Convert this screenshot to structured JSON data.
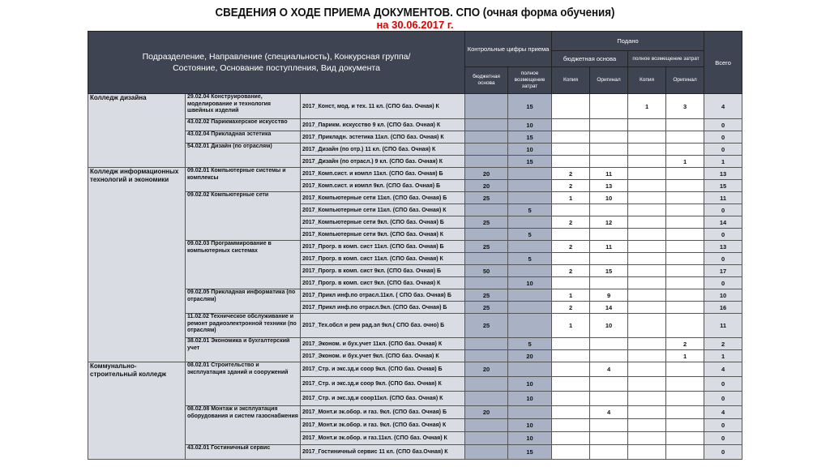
{
  "title": "СВЕДЕНИЯ О ХОДЕ ПРИЕМА ДОКУМЕНТОВ. СПО (очная форма обучения)",
  "subtitle": "на 30.06.2017 г.",
  "header": {
    "main": "Подразделение, Направление (специальность), Конкурсная группа/Состояние, Основание поступления, Вид документа",
    "control": "Контрольные цифры приема",
    "control_budget": "бюджетная основа",
    "control_full": "полное возмещение затрат",
    "submitted": "Подано",
    "sub_budget": "бюджетная основа",
    "sub_full": "полное возмещение затрат",
    "copy": "Копия",
    "original": "Оригинал",
    "copy2": "Копия",
    "original2": "Оригинал",
    "total": "Всего"
  },
  "colors": {
    "header_bg": "#3f4452",
    "label_bg": "#d9dce3",
    "control_bg": "#a9b2c4",
    "date_red": "#e00000"
  },
  "rows": [
    {
      "division": "Колледж дизайна",
      "div_span": 5,
      "direction": "29.02.04 Конструирование, моделирование и технология швейных изделий",
      "dir_span": 1,
      "group": "2017_Конст, мод. и тех. 11 кл. (СПО баз. Очная) К",
      "kb": "",
      "kp": "15",
      "bc": "",
      "bo": "",
      "fc": "1",
      "fo": "3",
      "total": "4"
    },
    {
      "direction": "43.02.02 Парикмахерское искусство",
      "dir_span": 1,
      "group": "2017_Парикм. искусство 9 кл. (СПО баз. Очная) К",
      "kb": "",
      "kp": "10",
      "bc": "",
      "bo": "",
      "fc": "",
      "fo": "",
      "total": "0"
    },
    {
      "direction": "43.02.04 Прикладная эстетика",
      "dir_span": 1,
      "group": "2017_Прикладн. эстетика 11кл. (СПО баз. Очная) К",
      "kb": "",
      "kp": "15",
      "bc": "",
      "bo": "",
      "fc": "",
      "fo": "",
      "total": "0"
    },
    {
      "direction": "54.02.01 Дизайн (по отраслям)",
      "dir_span": 2,
      "group": "2017_Дизайн (по отр.) 11 кл. (СПО баз. Очная) К",
      "kb": "",
      "kp": "10",
      "bc": "",
      "bo": "",
      "fc": "",
      "fo": "",
      "total": "0"
    },
    {
      "group": "2017_Дизайн (по отрасл.) 9 кл. (СПО баз. Очная) К",
      "kb": "",
      "kp": "15",
      "bc": "",
      "bo": "",
      "fc": "",
      "fo": "1",
      "total": "1"
    },
    {
      "division": "Колледж информационных технологий и экономики",
      "div_span": 15,
      "direction": "09.02.01 Компьютерные системы и комплексы",
      "dir_span": 2,
      "group": "2017_Комп.сист. и компл 11кл. (СПО баз. Очная) Б",
      "kb": "20",
      "kp": "",
      "bc": "2",
      "bo": "11",
      "fc": "",
      "fo": "",
      "total": "13"
    },
    {
      "group": "2017_Комп.сист. и компл 9кл. (СПО баз. Очная) Б",
      "kb": "20",
      "kp": "",
      "bc": "2",
      "bo": "13",
      "fc": "",
      "fo": "",
      "total": "15"
    },
    {
      "direction": "09.02.02 Компьютерные сети",
      "dir_span": 4,
      "group": "2017_Компьютерные сети 11кл. (СПО баз. Очная) Б",
      "kb": "25",
      "kp": "",
      "bc": "1",
      "bo": "10",
      "fc": "",
      "fo": "",
      "total": "11"
    },
    {
      "group": "2017_Компьютерные сети 11кл. (СПО баз. Очная) К",
      "kb": "",
      "kp": "5",
      "bc": "",
      "bo": "",
      "fc": "",
      "fo": "",
      "total": "0"
    },
    {
      "group": "2017_Компьютерные сети 9кл. (СПО баз. Очная) Б",
      "kb": "25",
      "kp": "",
      "bc": "2",
      "bo": "12",
      "fc": "",
      "fo": "",
      "total": "14"
    },
    {
      "group": "2017_Компьютерные сети 9кл. (СПО баз. Очная) К",
      "kb": "",
      "kp": "5",
      "bc": "",
      "bo": "",
      "fc": "",
      "fo": "",
      "total": "0"
    },
    {
      "direction": "09.02.03 Программирование в компьютерных системах",
      "dir_span": 4,
      "group": "2017_Прогр. в комп. сист 11кл. (СПО баз. Очная) Б",
      "kb": "25",
      "kp": "",
      "bc": "2",
      "bo": "11",
      "fc": "",
      "fo": "",
      "total": "13"
    },
    {
      "group": "2017_Прогр. в комп. сист 11кл. (СПО баз. Очная) К",
      "kb": "",
      "kp": "5",
      "bc": "",
      "bo": "",
      "fc": "",
      "fo": "",
      "total": "0"
    },
    {
      "group": "2017_Прогр. в комп. сист 9кл. (СПО баз. Очная) Б",
      "kb": "50",
      "kp": "",
      "bc": "2",
      "bo": "15",
      "fc": "",
      "fo": "",
      "total": "17"
    },
    {
      "group": "2017_Прогр. в комп. сист 9кл. (СПО баз. Очная) К",
      "kb": "",
      "kp": "10",
      "bc": "",
      "bo": "",
      "fc": "",
      "fo": "",
      "total": "0"
    },
    {
      "direction": "09.02.05 Прикладная информатика (по отраслям)",
      "dir_span": 2,
      "group": "2017_Прикл инф.по отрасл.11кл. ( СПО баз. Очная) Б",
      "kb": "25",
      "kp": "",
      "bc": "1",
      "bo": "9",
      "fc": "",
      "fo": "",
      "total": "10"
    },
    {
      "group": "2017_Прикл инф.по отрасл.9кл. (СПО баз. Очная) Б",
      "kb": "25",
      "kp": "",
      "bc": "2",
      "bo": "14",
      "fc": "",
      "fo": "",
      "total": "16"
    },
    {
      "direction": "11.02.02 Техническое обслуживание и ремонт радиоэлектронной техники (по отраслям)",
      "dir_span": 1,
      "group": "2017_Тех.обсл и рем рад.эл  9кл.( СПО баз. очно) Б",
      "kb": "25",
      "kp": "",
      "bc": "1",
      "bo": "10",
      "fc": "",
      "fo": "",
      "total": "11"
    },
    {
      "direction": "38.02.01 Экономика и бухгалтерский учет",
      "dir_span": 2,
      "group": "2017_Эконом. и бух.учет 11кл. (СПО баз. Очная) К",
      "kb": "",
      "kp": "5",
      "bc": "",
      "bo": "",
      "fc": "",
      "fo": "2",
      "total": "2"
    },
    {
      "group": "2017_Эконом. и бух.учет 9кл. (СПО баз. Очная) К",
      "kb": "",
      "kp": "20",
      "bc": "",
      "bo": "",
      "fc": "",
      "fo": "1",
      "total": "1"
    },
    {
      "division": "Коммунально-строительный колледж",
      "div_span": 7,
      "direction": "08.02.01 Строительство и эксплуатация зданий и сооружений",
      "dir_span": 3,
      "group": "2017_Стр. и экс.зд.и соор 9кл. (СПО баз. Очная) Б",
      "kb": "20",
      "kp": "",
      "bc": "",
      "bo": "4",
      "fc": "",
      "fo": "",
      "total": "4"
    },
    {
      "group": "2017_Стр. и экс.зд.и соор 9кл. (СПО баз. Очная) К",
      "kb": "",
      "kp": "10",
      "bc": "",
      "bo": "",
      "fc": "",
      "fo": "",
      "total": "0"
    },
    {
      "group": "2017_Стр. и экс.зд.и соор11кл. (СПО баз. Очная) К",
      "kb": "",
      "kp": "10",
      "bc": "",
      "bo": "",
      "fc": "",
      "fo": "",
      "total": "0"
    },
    {
      "direction": "08.02.08 Монтаж и эксплуатация оборудования и систем газоснабжения",
      "dir_span": 3,
      "group": "2017_Монт.и эк.обор. и газ. 9кл. (СПО баз. Очная) Б",
      "kb": "20",
      "kp": "",
      "bc": "",
      "bo": "4",
      "fc": "",
      "fo": "",
      "total": "4"
    },
    {
      "group": "2017_Монт.и эк.обор. и газ. 9кл. (СПО баз. Очная) К",
      "kb": "",
      "kp": "10",
      "bc": "",
      "bo": "",
      "fc": "",
      "fo": "",
      "total": "0"
    },
    {
      "group": "2017_Монт.и эк.обор. и газ.11кл. (СПО баз. Очная) К",
      "kb": "",
      "kp": "10",
      "bc": "",
      "bo": "",
      "fc": "",
      "fo": "",
      "total": "0"
    },
    {
      "direction": "43.02.01 Гостиничный сервис",
      "dir_span": 1,
      "group": "2017_Гостиничный сервис 11 кл. (СПО баз.Очная) К",
      "kb": "",
      "kp": "15",
      "bc": "",
      "bo": "",
      "fc": "",
      "fo": "",
      "total": "0"
    }
  ]
}
